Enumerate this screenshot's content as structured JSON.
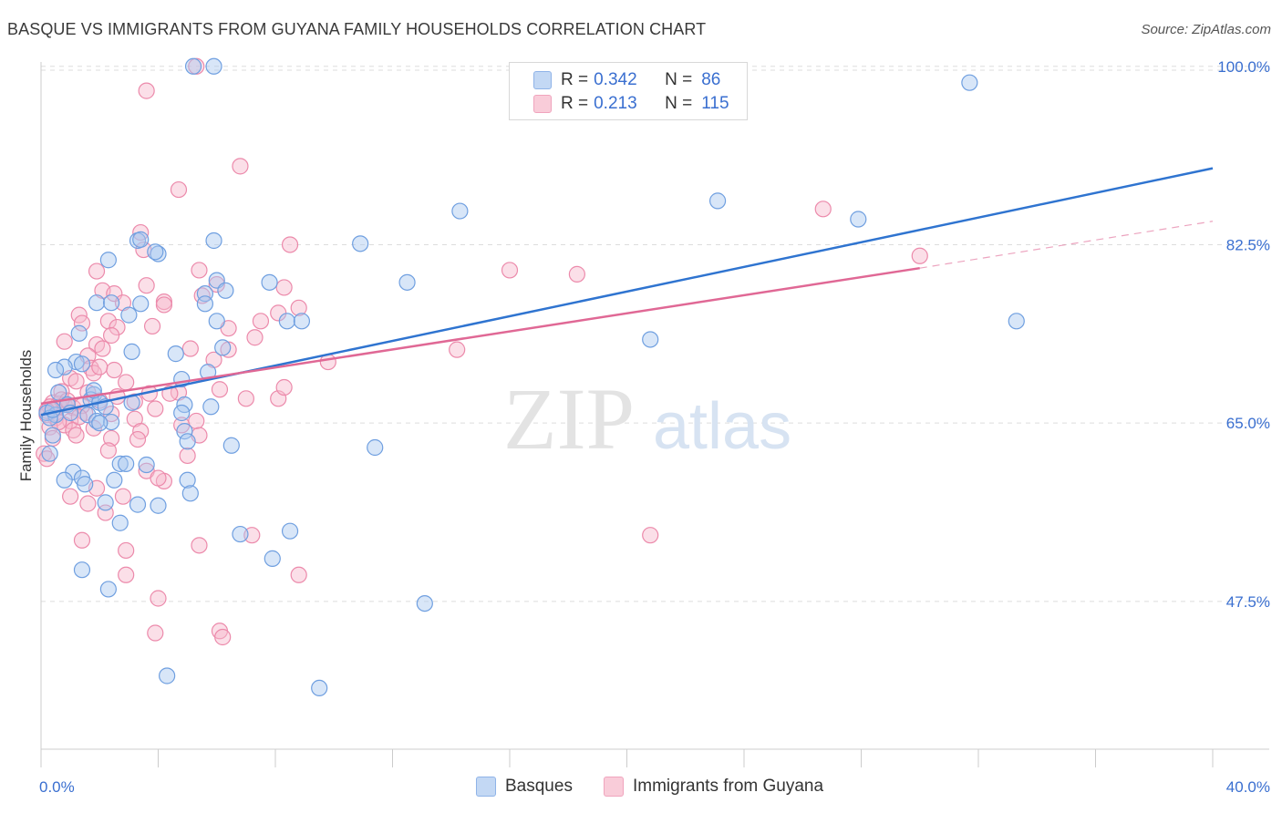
{
  "header": {
    "title": "BASQUE VS IMMIGRANTS FROM GUYANA FAMILY HOUSEHOLDS CORRELATION CHART",
    "source": "Source: ZipAtlas.com"
  },
  "legend_top": {
    "rows": [
      {
        "r_label": "R =",
        "r_value": "0.342",
        "n_label": "N =",
        "n_value": "86"
      },
      {
        "r_label": "R =",
        "r_value": "0.213",
        "n_label": "N =",
        "n_value": "115"
      }
    ]
  },
  "legend_bottom": {
    "items": [
      {
        "label": "Basques"
      },
      {
        "label": "Immigrants from Guyana"
      }
    ]
  },
  "watermark": {
    "zip": "ZIP",
    "atlas": "atlas"
  },
  "colors": {
    "blue_fill": "#a9c8f0",
    "blue_stroke": "#6f9fe0",
    "blue_line": "#2f74d0",
    "pink_fill": "#f6b8cc",
    "pink_stroke": "#ec8aab",
    "pink_line": "#e06895",
    "tick_label": "#3a6fd0",
    "grid": "#dddddd"
  },
  "chart_data": {
    "type": "scatter",
    "title": "BASQUE VS IMMIGRANTS FROM GUYANA FAMILY HOUSEHOLDS CORRELATION CHART",
    "xlabel": "",
    "ylabel": "Family Households",
    "xlim": [
      0.0,
      40.0
    ],
    "ylim": [
      33.0,
      101.5
    ],
    "x_tick_labels": [
      {
        "value": 0.0,
        "label": "0.0%"
      },
      {
        "value": 40.0,
        "label": "40.0%"
      }
    ],
    "y_ticks": [
      {
        "value": 47.5,
        "label": "47.5%"
      },
      {
        "value": 65.0,
        "label": "65.0%"
      },
      {
        "value": 82.5,
        "label": "82.5%"
      },
      {
        "value": 100.0,
        "label": "100.0%"
      }
    ],
    "x_minor_ticks": [
      0,
      4,
      8,
      12,
      16,
      20,
      24,
      28,
      32,
      36,
      40
    ],
    "grid": true,
    "legend_position": "top-center",
    "series": [
      {
        "name": "Basques",
        "r": 0.342,
        "n": 86,
        "trend": {
          "x": [
            0.0,
            40.0
          ],
          "y": [
            65.8,
            90.0
          ],
          "dashed_from": null
        },
        "points": [
          [
            5.2,
            100.0
          ],
          [
            5.9,
            100.0
          ],
          [
            31.7,
            98.4
          ],
          [
            14.3,
            85.8
          ],
          [
            23.1,
            86.8
          ],
          [
            27.9,
            85.0
          ],
          [
            3.3,
            82.9
          ],
          [
            3.4,
            83.0
          ],
          [
            5.9,
            82.9
          ],
          [
            10.9,
            82.6
          ],
          [
            4.0,
            81.6
          ],
          [
            3.9,
            81.8
          ],
          [
            2.3,
            81.0
          ],
          [
            6.0,
            79.0
          ],
          [
            7.8,
            78.8
          ],
          [
            12.5,
            78.8
          ],
          [
            5.6,
            77.7
          ],
          [
            1.9,
            76.8
          ],
          [
            2.4,
            76.8
          ],
          [
            3.4,
            76.7
          ],
          [
            5.6,
            76.7
          ],
          [
            3.0,
            75.6
          ],
          [
            6.0,
            75.0
          ],
          [
            8.4,
            75.0
          ],
          [
            8.9,
            75.0
          ],
          [
            33.3,
            75.0
          ],
          [
            1.3,
            73.8
          ],
          [
            6.2,
            72.4
          ],
          [
            3.1,
            72.0
          ],
          [
            4.6,
            71.8
          ],
          [
            20.8,
            73.2
          ],
          [
            1.2,
            71.0
          ],
          [
            0.8,
            70.5
          ],
          [
            1.4,
            70.8
          ],
          [
            0.5,
            70.2
          ],
          [
            5.7,
            70.0
          ],
          [
            4.8,
            69.3
          ],
          [
            0.6,
            68.0
          ],
          [
            1.8,
            67.8
          ],
          [
            1.7,
            67.3
          ],
          [
            2.0,
            67.0
          ],
          [
            0.9,
            66.8
          ],
          [
            2.2,
            66.6
          ],
          [
            3.1,
            67.0
          ],
          [
            4.9,
            66.8
          ],
          [
            5.8,
            66.6
          ],
          [
            0.2,
            66.0
          ],
          [
            0.5,
            65.8
          ],
          [
            0.3,
            65.5
          ],
          [
            1.6,
            65.8
          ],
          [
            1.9,
            65.2
          ],
          [
            2.4,
            65.1
          ],
          [
            4.8,
            66.0
          ],
          [
            2.0,
            65.0
          ],
          [
            4.9,
            64.2
          ],
          [
            0.4,
            63.8
          ],
          [
            5.0,
            63.2
          ],
          [
            6.5,
            62.8
          ],
          [
            11.4,
            62.6
          ],
          [
            0.3,
            62.0
          ],
          [
            2.7,
            61.0
          ],
          [
            2.9,
            61.0
          ],
          [
            3.6,
            60.9
          ],
          [
            1.1,
            60.2
          ],
          [
            0.8,
            59.4
          ],
          [
            1.4,
            59.6
          ],
          [
            1.5,
            59.0
          ],
          [
            2.5,
            59.4
          ],
          [
            5.0,
            59.4
          ],
          [
            5.1,
            58.1
          ],
          [
            2.2,
            57.2
          ],
          [
            3.3,
            57.0
          ],
          [
            4.0,
            56.9
          ],
          [
            2.7,
            55.2
          ],
          [
            6.8,
            54.1
          ],
          [
            8.5,
            54.4
          ],
          [
            7.9,
            51.7
          ],
          [
            1.4,
            50.6
          ],
          [
            2.3,
            48.7
          ],
          [
            13.1,
            47.3
          ],
          [
            4.3,
            40.2
          ],
          [
            9.5,
            39.0
          ],
          [
            6.3,
            78.0
          ],
          [
            1.0,
            66.0
          ],
          [
            1.8,
            68.2
          ],
          [
            0.4,
            66.3
          ]
        ]
      },
      {
        "name": "Immigrants from Guyana",
        "r": 0.213,
        "n": 115,
        "trend": {
          "x": [
            0.0,
            30.0,
            40.0
          ],
          "y": [
            66.9,
            80.2,
            84.8
          ],
          "dashed_from": 30.0
        },
        "points": [
          [
            5.3,
            100.0
          ],
          [
            3.6,
            97.6
          ],
          [
            6.8,
            90.2
          ],
          [
            4.7,
            87.9
          ],
          [
            26.7,
            86.0
          ],
          [
            30.0,
            81.4
          ],
          [
            3.4,
            83.7
          ],
          [
            8.5,
            82.5
          ],
          [
            3.5,
            82.0
          ],
          [
            16.0,
            80.0
          ],
          [
            18.3,
            79.6
          ],
          [
            1.9,
            79.9
          ],
          [
            5.4,
            80.0
          ],
          [
            2.1,
            78.0
          ],
          [
            2.5,
            77.7
          ],
          [
            6.0,
            78.6
          ],
          [
            8.3,
            78.3
          ],
          [
            3.6,
            78.5
          ],
          [
            4.2,
            76.9
          ],
          [
            5.5,
            77.5
          ],
          [
            2.8,
            76.8
          ],
          [
            4.2,
            76.6
          ],
          [
            1.3,
            75.6
          ],
          [
            8.1,
            75.8
          ],
          [
            2.3,
            75.0
          ],
          [
            1.4,
            74.8
          ],
          [
            2.6,
            74.4
          ],
          [
            3.8,
            74.5
          ],
          [
            8.8,
            76.3
          ],
          [
            2.4,
            73.6
          ],
          [
            7.3,
            73.4
          ],
          [
            0.8,
            73.0
          ],
          [
            1.9,
            72.7
          ],
          [
            2.1,
            72.3
          ],
          [
            6.4,
            72.2
          ],
          [
            14.2,
            72.2
          ],
          [
            5.1,
            72.3
          ],
          [
            1.6,
            71.6
          ],
          [
            9.8,
            71.0
          ],
          [
            1.7,
            70.4
          ],
          [
            2.5,
            70.2
          ],
          [
            1.0,
            69.4
          ],
          [
            2.9,
            69.0
          ],
          [
            1.2,
            69.1
          ],
          [
            1.6,
            68.0
          ],
          [
            6.1,
            68.3
          ],
          [
            0.7,
            68.1
          ],
          [
            4.7,
            68.0
          ],
          [
            3.7,
            67.9
          ],
          [
            7.0,
            67.4
          ],
          [
            8.1,
            67.4
          ],
          [
            2.6,
            67.6
          ],
          [
            3.2,
            67.1
          ],
          [
            0.4,
            67.0
          ],
          [
            0.6,
            66.9
          ],
          [
            0.8,
            66.8
          ],
          [
            0.5,
            66.4
          ],
          [
            1.1,
            66.5
          ],
          [
            3.9,
            66.4
          ],
          [
            1.5,
            66.0
          ],
          [
            2.4,
            65.9
          ],
          [
            0.2,
            65.8
          ],
          [
            0.5,
            65.5
          ],
          [
            1.0,
            65.2
          ],
          [
            3.2,
            65.4
          ],
          [
            5.3,
            65.2
          ],
          [
            0.8,
            64.8
          ],
          [
            1.8,
            64.5
          ],
          [
            0.3,
            64.6
          ],
          [
            1.1,
            64.3
          ],
          [
            3.4,
            64.2
          ],
          [
            4.8,
            64.8
          ],
          [
            1.2,
            63.8
          ],
          [
            2.4,
            63.5
          ],
          [
            3.3,
            63.4
          ],
          [
            5.4,
            63.8
          ],
          [
            0.1,
            62.0
          ],
          [
            0.2,
            61.5
          ],
          [
            2.3,
            62.3
          ],
          [
            5.0,
            61.8
          ],
          [
            3.6,
            60.3
          ],
          [
            4.2,
            59.3
          ],
          [
            4.0,
            59.6
          ],
          [
            1.0,
            57.8
          ],
          [
            1.6,
            57.1
          ],
          [
            1.9,
            58.6
          ],
          [
            2.8,
            57.8
          ],
          [
            2.2,
            56.2
          ],
          [
            5.4,
            53.0
          ],
          [
            7.2,
            54.0
          ],
          [
            1.4,
            53.5
          ],
          [
            2.9,
            52.5
          ],
          [
            20.8,
            54.0
          ],
          [
            2.9,
            50.1
          ],
          [
            8.8,
            50.1
          ],
          [
            4.0,
            47.8
          ],
          [
            3.9,
            44.4
          ],
          [
            6.1,
            44.6
          ],
          [
            6.2,
            44.0
          ],
          [
            0.7,
            67.3
          ],
          [
            0.9,
            67.2
          ],
          [
            0.3,
            66.6
          ],
          [
            1.4,
            66.7
          ],
          [
            0.6,
            65.1
          ],
          [
            1.3,
            65.6
          ],
          [
            2.0,
            67.2
          ],
          [
            4.4,
            67.9
          ],
          [
            7.5,
            75.0
          ],
          [
            6.4,
            74.3
          ],
          [
            5.9,
            71.2
          ],
          [
            8.3,
            68.5
          ],
          [
            0.2,
            66.2
          ],
          [
            0.4,
            63.5
          ],
          [
            1.8,
            69.9
          ],
          [
            2.0,
            70.5
          ]
        ]
      }
    ]
  }
}
